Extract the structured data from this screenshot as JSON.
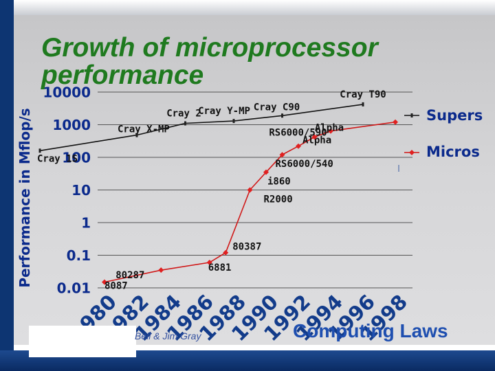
{
  "slide": {
    "title": "Growth of microprocessor performance",
    "y_axis_label": "Performance in Mflop/s",
    "footer_credit": "Bell & Jim Gray",
    "footer_laws": "Computing Laws"
  },
  "colors": {
    "background": "#d0d0d2",
    "frame": "#0d3572",
    "title": "#1f7a1f",
    "axis_text": "#0b2a8c",
    "supers_series": "#111111",
    "micros_series": "#d01818",
    "micros_marker": "#e02020"
  },
  "chart_data": {
    "type": "line",
    "scale": "log",
    "xlim": [
      1980,
      1998
    ],
    "ylim": [
      0.01,
      10000
    ],
    "y_ticks": [
      {
        "value": 10000,
        "label": "10000"
      },
      {
        "value": 1000,
        "label": "1000"
      },
      {
        "value": 100,
        "label": "100"
      },
      {
        "value": 10,
        "label": "10"
      },
      {
        "value": 1,
        "label": "1"
      },
      {
        "value": 0.1,
        "label": "0.1"
      },
      {
        "value": 0.01,
        "label": "0.01"
      }
    ],
    "x_ticks": [
      "1980",
      "1982",
      "1984",
      "1986",
      "1988",
      "1990",
      "1992",
      "1994",
      "1996",
      "1998"
    ],
    "legend": [
      "Supers",
      "Micros"
    ],
    "series": [
      {
        "name": "Supers",
        "points": [
          {
            "x": 1976,
            "y": 160,
            "label": "Cray 1S"
          },
          {
            "x": 1982,
            "y": 480,
            "label": "Cray X-MP"
          },
          {
            "x": 1985,
            "y": 1100,
            "label": "Cray 2"
          },
          {
            "x": 1988,
            "y": 1300,
            "label": "Cray Y-MP"
          },
          {
            "x": 1991,
            "y": 1900,
            "label": "Cray C90"
          },
          {
            "x": 1996,
            "y": 4200,
            "label": "Cray T90"
          }
        ]
      },
      {
        "name": "Micros",
        "points": [
          {
            "x": 1980,
            "y": 0.015,
            "label": "8087"
          },
          {
            "x": 1983.5,
            "y": 0.035,
            "label": "80287"
          },
          {
            "x": 1986.5,
            "y": 0.06,
            "label": "6881"
          },
          {
            "x": 1987.5,
            "y": 0.12,
            "label": "80387"
          },
          {
            "x": 1989,
            "y": 10,
            "label": "R2000"
          },
          {
            "x": 1990,
            "y": 35,
            "label": "i860"
          },
          {
            "x": 1991,
            "y": 120,
            "label": "RS6000/540"
          },
          {
            "x": 1992,
            "y": 220,
            "label": "Alpha"
          },
          {
            "x": 1993,
            "y": 420,
            "label": "RS6000/590"
          },
          {
            "x": 1994,
            "y": 640,
            "label": "Alpha"
          },
          {
            "x": 1998,
            "y": 1200,
            "label": ""
          }
        ]
      }
    ]
  }
}
